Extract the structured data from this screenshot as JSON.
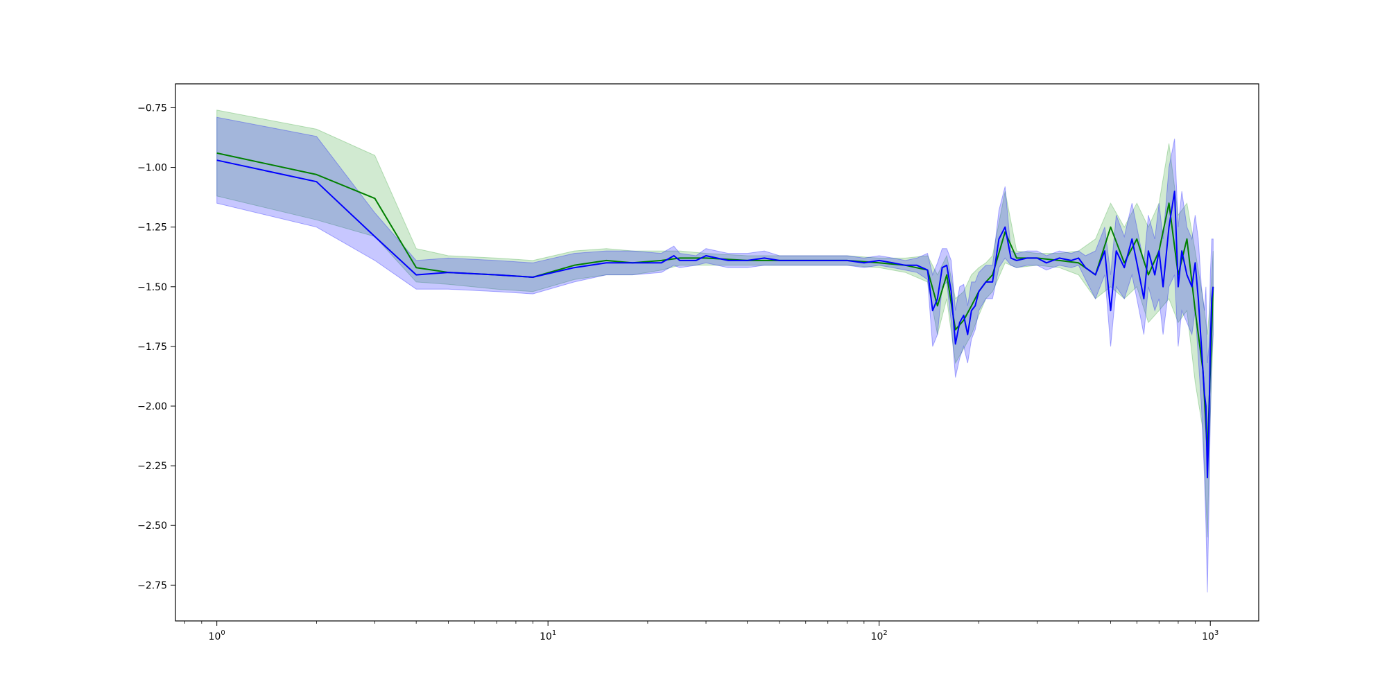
{
  "chart_data": {
    "type": "line",
    "title": "",
    "xlabel": "",
    "ylabel": "",
    "xscale": "log",
    "xlim": [
      0.75,
      1400
    ],
    "ylim": [
      -2.9,
      -0.65
    ],
    "grid": false,
    "x_ticks": [
      {
        "value": 1,
        "base": "10",
        "exp": "0"
      },
      {
        "value": 10,
        "base": "10",
        "exp": "1"
      },
      {
        "value": 100,
        "base": "10",
        "exp": "2"
      },
      {
        "value": 1000,
        "base": "10",
        "exp": "3"
      }
    ],
    "y_ticks": [
      {
        "value": -0.75,
        "label": "−0.75"
      },
      {
        "value": -1.0,
        "label": "−1.00"
      },
      {
        "value": -1.25,
        "label": "−1.25"
      },
      {
        "value": -1.5,
        "label": "−1.50"
      },
      {
        "value": -1.75,
        "label": "−1.75"
      },
      {
        "value": -2.0,
        "label": "−2.00"
      },
      {
        "value": -2.25,
        "label": "−2.25"
      },
      {
        "value": -2.5,
        "label": "−2.50"
      },
      {
        "value": -2.75,
        "label": "−2.75"
      }
    ],
    "colors": {
      "green_line": "#008000",
      "green_band": "#2ca02c",
      "blue_line": "#0000ff",
      "blue_band": "#0000ff",
      "overlap_hint": "#4c72b0"
    },
    "series": [
      {
        "color": "#008000",
        "x": [
          1,
          2,
          3,
          4,
          5,
          7,
          9,
          12,
          15,
          18,
          22,
          25,
          30,
          40,
          60,
          80,
          100,
          120,
          140,
          150,
          160,
          170,
          180,
          190,
          200,
          210,
          220,
          240,
          260,
          300,
          350,
          400,
          450,
          500,
          550,
          600,
          650,
          700,
          750,
          800,
          850,
          900,
          950,
          980,
          1000,
          1020
        ],
        "y": [
          -0.94,
          -1.03,
          -1.13,
          -1.42,
          -1.44,
          -1.45,
          -1.46,
          -1.41,
          -1.39,
          -1.4,
          -1.39,
          -1.38,
          -1.38,
          -1.39,
          -1.39,
          -1.39,
          -1.4,
          -1.41,
          -1.43,
          -1.58,
          -1.45,
          -1.68,
          -1.64,
          -1.58,
          -1.52,
          -1.48,
          -1.45,
          -1.27,
          -1.38,
          -1.38,
          -1.39,
          -1.4,
          -1.45,
          -1.25,
          -1.4,
          -1.3,
          -1.45,
          -1.35,
          -1.15,
          -1.45,
          -1.3,
          -1.6,
          -1.85,
          -2.2,
          -1.85,
          -1.5
        ],
        "lower": [
          -1.12,
          -1.22,
          -1.29,
          -1.48,
          -1.49,
          -1.51,
          -1.52,
          -1.47,
          -1.45,
          -1.45,
          -1.43,
          -1.41,
          -1.41,
          -1.41,
          -1.41,
          -1.41,
          -1.42,
          -1.44,
          -1.48,
          -1.7,
          -1.55,
          -1.82,
          -1.76,
          -1.7,
          -1.62,
          -1.55,
          -1.52,
          -1.4,
          -1.42,
          -1.41,
          -1.42,
          -1.45,
          -1.55,
          -1.5,
          -1.55,
          -1.5,
          -1.65,
          -1.6,
          -1.55,
          -1.65,
          -1.6,
          -1.9,
          -2.1,
          -2.55,
          -2.05,
          -1.7
        ],
        "upper": [
          -0.76,
          -0.84,
          -0.95,
          -1.34,
          -1.37,
          -1.38,
          -1.39,
          -1.35,
          -1.34,
          -1.35,
          -1.35,
          -1.35,
          -1.36,
          -1.37,
          -1.37,
          -1.37,
          -1.38,
          -1.38,
          -1.37,
          -1.45,
          -1.37,
          -1.55,
          -1.52,
          -1.45,
          -1.42,
          -1.4,
          -1.37,
          -1.1,
          -1.35,
          -1.36,
          -1.36,
          -1.35,
          -1.3,
          -1.15,
          -1.25,
          -1.15,
          -1.25,
          -1.15,
          -0.9,
          -1.2,
          -1.15,
          -1.35,
          -1.55,
          -1.7,
          -1.55,
          -1.35
        ]
      },
      {
        "color": "#0000ff",
        "x": [
          1,
          2,
          3,
          4,
          5,
          7,
          9,
          12,
          15,
          18,
          22,
          24,
          25,
          28,
          30,
          35,
          40,
          45,
          50,
          60,
          70,
          80,
          90,
          100,
          110,
          120,
          130,
          140,
          145,
          150,
          155,
          160,
          165,
          170,
          175,
          180,
          185,
          190,
          195,
          200,
          210,
          220,
          230,
          240,
          250,
          260,
          280,
          300,
          320,
          350,
          380,
          400,
          420,
          450,
          480,
          500,
          520,
          550,
          580,
          600,
          630,
          650,
          680,
          700,
          720,
          750,
          780,
          800,
          820,
          850,
          880,
          900,
          920,
          940,
          960,
          970,
          980,
          990,
          1000,
          1010,
          1020
        ],
        "y": [
          -0.97,
          -1.06,
          -1.29,
          -1.45,
          -1.44,
          -1.45,
          -1.46,
          -1.42,
          -1.4,
          -1.4,
          -1.4,
          -1.37,
          -1.39,
          -1.39,
          -1.37,
          -1.39,
          -1.39,
          -1.38,
          -1.39,
          -1.39,
          -1.39,
          -1.39,
          -1.4,
          -1.39,
          -1.4,
          -1.41,
          -1.41,
          -1.43,
          -1.6,
          -1.55,
          -1.42,
          -1.41,
          -1.52,
          -1.74,
          -1.65,
          -1.62,
          -1.7,
          -1.6,
          -1.58,
          -1.52,
          -1.48,
          -1.48,
          -1.3,
          -1.25,
          -1.38,
          -1.39,
          -1.38,
          -1.38,
          -1.4,
          -1.38,
          -1.39,
          -1.38,
          -1.42,
          -1.45,
          -1.35,
          -1.6,
          -1.35,
          -1.42,
          -1.3,
          -1.4,
          -1.55,
          -1.35,
          -1.45,
          -1.35,
          -1.5,
          -1.25,
          -1.1,
          -1.5,
          -1.35,
          -1.45,
          -1.5,
          -1.4,
          -1.55,
          -1.75,
          -1.95,
          -2.0,
          -2.3,
          -2.1,
          -1.75,
          -1.55,
          -1.5
        ],
        "lower": [
          -1.15,
          -1.25,
          -1.39,
          -1.51,
          -1.51,
          -1.52,
          -1.53,
          -1.48,
          -1.45,
          -1.45,
          -1.44,
          -1.41,
          -1.42,
          -1.41,
          -1.4,
          -1.42,
          -1.42,
          -1.41,
          -1.41,
          -1.41,
          -1.41,
          -1.41,
          -1.42,
          -1.41,
          -1.42,
          -1.43,
          -1.44,
          -1.47,
          -1.75,
          -1.7,
          -1.5,
          -1.48,
          -1.65,
          -1.88,
          -1.8,
          -1.75,
          -1.82,
          -1.72,
          -1.68,
          -1.6,
          -1.55,
          -1.55,
          -1.42,
          -1.38,
          -1.41,
          -1.42,
          -1.41,
          -1.41,
          -1.43,
          -1.41,
          -1.42,
          -1.41,
          -1.47,
          -1.55,
          -1.45,
          -1.75,
          -1.5,
          -1.55,
          -1.45,
          -1.55,
          -1.7,
          -1.5,
          -1.6,
          -1.55,
          -1.7,
          -1.5,
          -1.45,
          -1.75,
          -1.6,
          -1.65,
          -1.7,
          -1.6,
          -1.8,
          -2.0,
          -2.3,
          -2.5,
          -2.78,
          -2.45,
          -2.05,
          -1.8,
          -1.7
        ],
        "upper": [
          -0.79,
          -0.87,
          -1.19,
          -1.39,
          -1.38,
          -1.39,
          -1.4,
          -1.36,
          -1.35,
          -1.35,
          -1.36,
          -1.33,
          -1.36,
          -1.37,
          -1.34,
          -1.36,
          -1.36,
          -1.35,
          -1.37,
          -1.37,
          -1.37,
          -1.37,
          -1.38,
          -1.37,
          -1.38,
          -1.39,
          -1.38,
          -1.36,
          -1.45,
          -1.4,
          -1.34,
          -1.34,
          -1.39,
          -1.6,
          -1.5,
          -1.49,
          -1.58,
          -1.48,
          -1.48,
          -1.44,
          -1.41,
          -1.41,
          -1.18,
          -1.08,
          -1.35,
          -1.36,
          -1.35,
          -1.35,
          -1.37,
          -1.35,
          -1.36,
          -1.35,
          -1.37,
          -1.35,
          -1.25,
          -1.45,
          -1.2,
          -1.29,
          -1.15,
          -1.25,
          -1.4,
          -1.2,
          -1.3,
          -1.15,
          -1.3,
          -1.0,
          -0.88,
          -1.25,
          -1.1,
          -1.25,
          -1.3,
          -1.2,
          -1.3,
          -1.5,
          -1.6,
          -1.5,
          -1.82,
          -1.75,
          -1.45,
          -1.3,
          -1.3
        ]
      }
    ]
  }
}
